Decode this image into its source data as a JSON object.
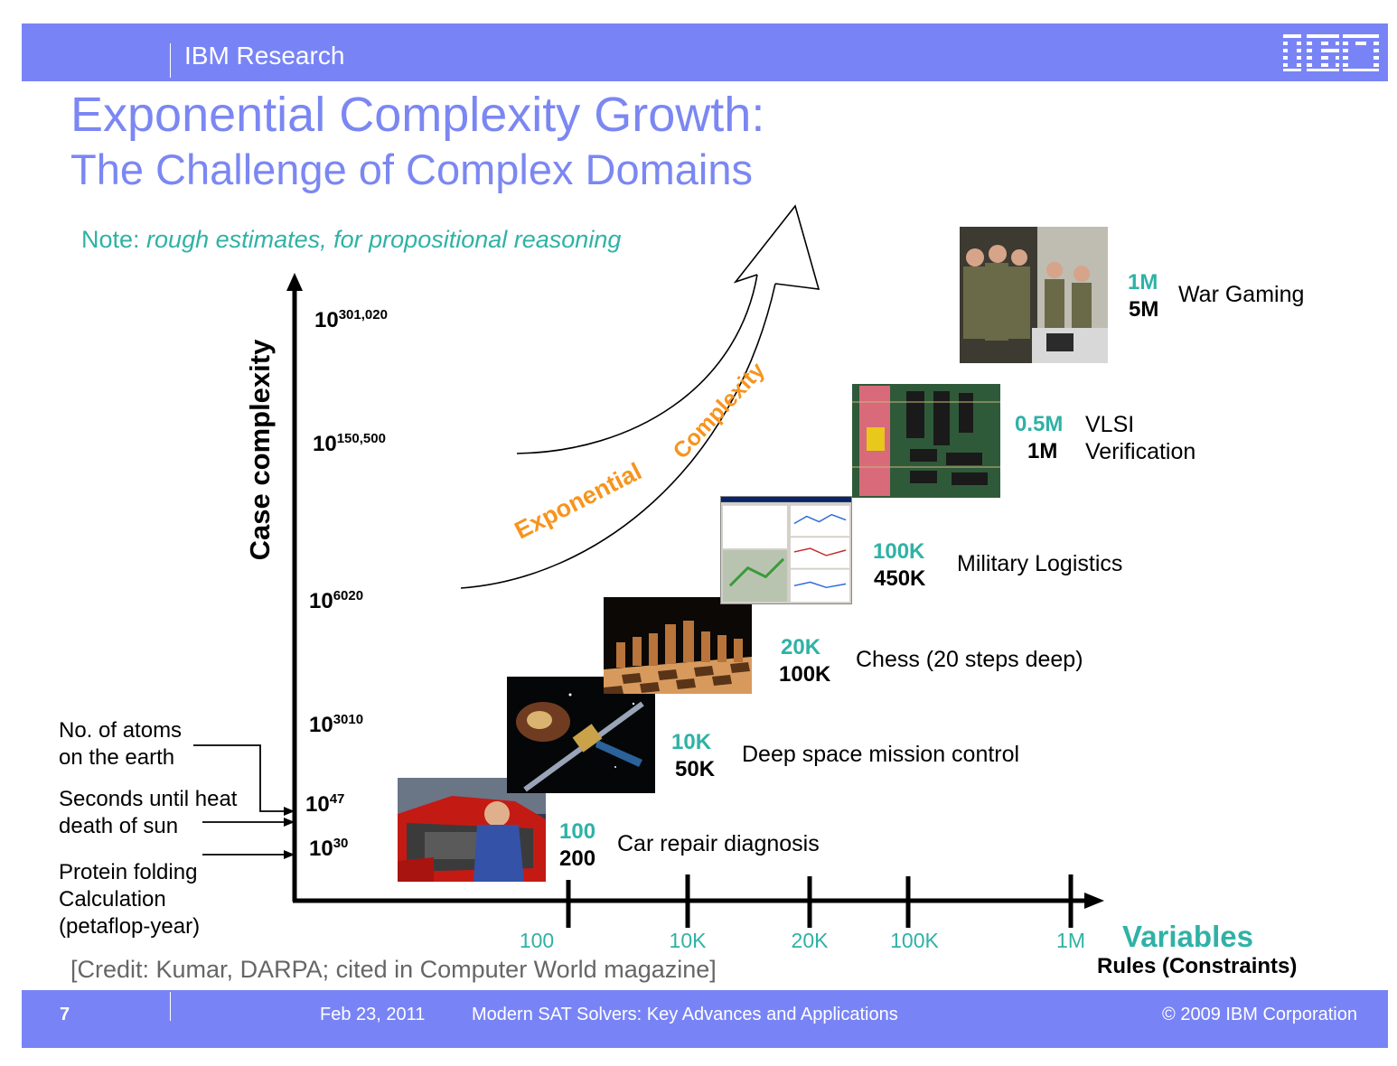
{
  "header": {
    "org": "IBM Research",
    "logo_text": "IBM"
  },
  "title": {
    "line1": "Exponential Complexity Growth:",
    "line2": "The Challenge of Complex Domains"
  },
  "note": {
    "prefix": "Note: ",
    "text": "rough estimates, for propositional reasoning"
  },
  "y_axis": {
    "title": "Case complexity",
    "ticks": [
      {
        "base": "10",
        "exp": "301,020"
      },
      {
        "base": "10",
        "exp": "150,500"
      },
      {
        "base": "10",
        "exp": "6020"
      },
      {
        "base": "10",
        "exp": "3010"
      },
      {
        "base": "10",
        "exp": "47"
      },
      {
        "base": "10",
        "exp": "30"
      }
    ]
  },
  "side_notes": [
    {
      "line1": "No. of atoms",
      "line2": "on the earth"
    },
    {
      "line1": "Seconds until heat",
      "line2": "death of sun"
    },
    {
      "line1": "Protein folding",
      "line2": "Calculation",
      "line3": "(petaflop-year)"
    }
  ],
  "curve_label": {
    "word1": "Exponential",
    "word2": "Complexity"
  },
  "x_axis": {
    "ticks": [
      "100",
      "10K",
      "20K",
      "100K",
      "1M"
    ],
    "title": "Variables",
    "subtitle": "Rules (Constraints)"
  },
  "domains": [
    {
      "variables": "100",
      "rules": "200",
      "label": "Car repair diagnosis",
      "label2": ""
    },
    {
      "variables": "10K",
      "rules": "50K",
      "label": "Deep space mission control",
      "label2": ""
    },
    {
      "variables": "20K",
      "rules": "100K",
      "label": "Chess (20 steps deep)",
      "label2": ""
    },
    {
      "variables": "100K",
      "rules": "450K",
      "label": "Military Logistics",
      "label2": ""
    },
    {
      "variables": "0.5M",
      "rules": "1M",
      "label": "VLSI",
      "label2": "Verification"
    },
    {
      "variables": "1M",
      "rules": "5M",
      "label": "War Gaming",
      "label2": ""
    }
  ],
  "credit": "[Credit: Kumar, DARPA;  cited in Computer World magazine]",
  "footer": {
    "page": "7",
    "date": "Feb 23, 2011",
    "talk": "Modern SAT Solvers: Key Advances and Applications",
    "copyright": "© 2009 IBM Corporation"
  },
  "colors": {
    "bar": "#7884f6",
    "title": "#7b87f2",
    "accent_teal": "#2fb2a6",
    "accent_orange": "#f7941d"
  }
}
